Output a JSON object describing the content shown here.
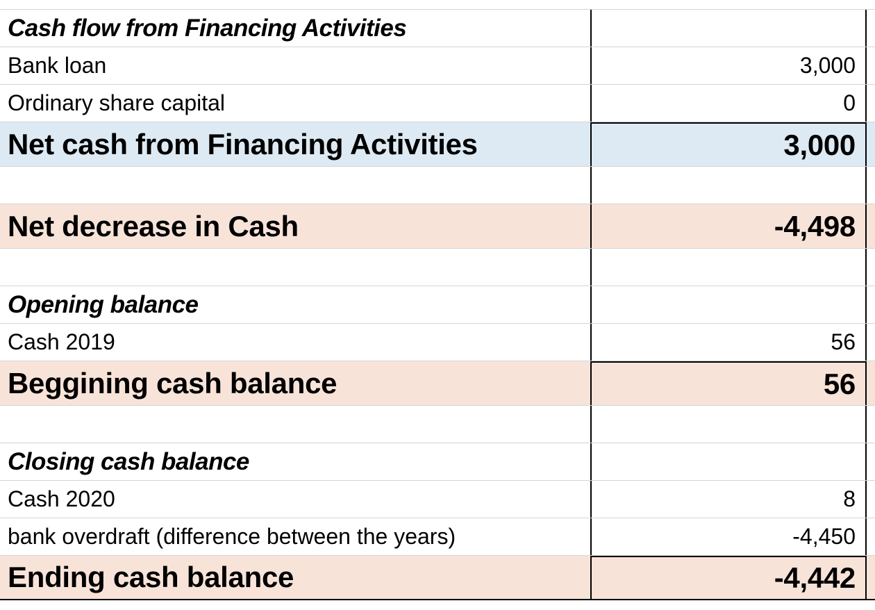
{
  "sheet": {
    "financing": {
      "heading": "Cash flow from Financing Activities",
      "bank_loan": {
        "label": "Bank loan",
        "value": "3,000"
      },
      "share_capital": {
        "label": "Ordinary share capital",
        "value": "0"
      },
      "net": {
        "label": "Net cash from Financing Activities",
        "value": "3,000"
      }
    },
    "net_decrease": {
      "label": "Net decrease in Cash",
      "value": "-4,498"
    },
    "opening": {
      "heading": "Opening balance",
      "cash_2019": {
        "label": "Cash 2019",
        "value": "56"
      },
      "beginning": {
        "label": "Beggining cash balance",
        "value": "56"
      }
    },
    "closing": {
      "heading": "Closing cash balance",
      "cash_2020": {
        "label": "Cash 2020",
        "value": "8"
      },
      "overdraft": {
        "label": "bank overdraft (difference between the years)",
        "value": "-4,450"
      },
      "ending": {
        "label": "Ending cash balance",
        "value": "-4,442"
      }
    },
    "colors": {
      "financing_total": "#ddeaf3",
      "highlight_total": "#f8e3d9",
      "gridline": "#d4d4d4",
      "border": "#000000"
    }
  }
}
